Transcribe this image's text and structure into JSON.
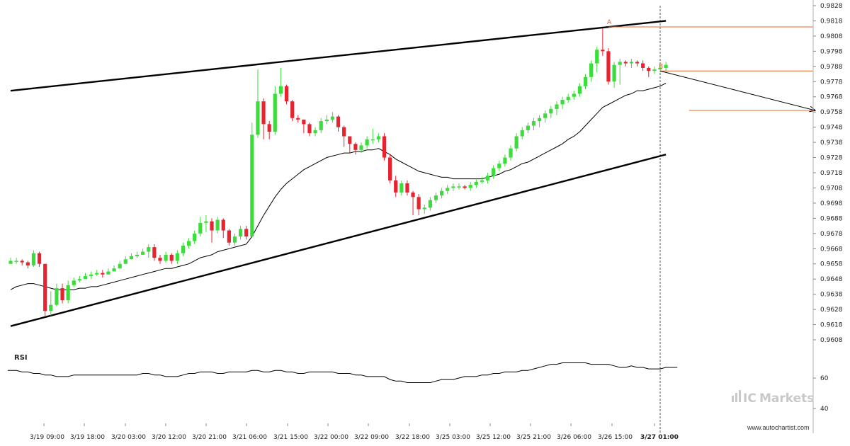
{
  "watermark": "www.autochartist.com",
  "brand": {
    "prefix": "IC",
    "name": "Markets"
  },
  "chart_data": [
    {
      "type": "candlestick",
      "title": "",
      "y_ticks": [
        "0.9828",
        "0.9818",
        "0.9808",
        "0.9798",
        "0.9788",
        "0.9778",
        "0.9768",
        "0.9758",
        "0.9748",
        "0.9738",
        "0.9728",
        "0.9718",
        "0.9708",
        "0.9698",
        "0.9688",
        "0.9678",
        "0.9668",
        "0.9658",
        "0.9648",
        "0.9638",
        "0.9628",
        "0.9618",
        "0.9608"
      ],
      "x_ticks": [
        "3/19 09:00",
        "3/19 18:00",
        "3/20 03:00",
        "3/20 12:00",
        "3/20 21:00",
        "3/21 06:00",
        "3/21 15:00",
        "3/22 00:00",
        "3/22 09:00",
        "3/22 18:00",
        "3/25 03:00",
        "3/25 12:00",
        "3/25 21:00",
        "3/26 06:00",
        "3/26 15:00",
        "3/27 01:00"
      ],
      "ylim": [
        0.9604,
        0.983
      ],
      "colors": {
        "up": "#3ddc3d",
        "down": "#e8232f",
        "trendline": "#000000",
        "level": "#e8672a",
        "ma": "#000000"
      },
      "close": [
        0.966,
        0.966,
        0.9659,
        0.9657,
        0.9665,
        0.9658,
        0.9627,
        0.9631,
        0.9642,
        0.9634,
        0.9644,
        0.9647,
        0.9648,
        0.965,
        0.9651,
        0.9652,
        0.9651,
        0.9653,
        0.9655,
        0.9658,
        0.9661,
        0.9663,
        0.9664,
        0.9666,
        0.9669,
        0.9662,
        0.966,
        0.9664,
        0.966,
        0.9665,
        0.967,
        0.9673,
        0.9678,
        0.9685,
        0.9686,
        0.968,
        0.9687,
        0.968,
        0.9672,
        0.9676,
        0.9681,
        0.9676,
        0.9743,
        0.9765,
        0.975,
        0.9745,
        0.977,
        0.9775,
        0.9765,
        0.9754,
        0.9753,
        0.975,
        0.9744,
        0.9746,
        0.9752,
        0.9753,
        0.9755,
        0.9748,
        0.9742,
        0.9737,
        0.9733,
        0.9736,
        0.974,
        0.974,
        0.9742,
        0.9728,
        0.9713,
        0.9705,
        0.9711,
        0.9705,
        0.9702,
        0.9694,
        0.9695,
        0.97,
        0.9703,
        0.9706,
        0.9708,
        0.9709,
        0.9709,
        0.9708,
        0.971,
        0.9712,
        0.9713,
        0.9716,
        0.9721,
        0.9724,
        0.9728,
        0.9734,
        0.9742,
        0.9746,
        0.9749,
        0.9752,
        0.9754,
        0.9757,
        0.976,
        0.9763,
        0.9766,
        0.9768,
        0.977,
        0.9775,
        0.9781,
        0.979,
        0.9799,
        0.9798,
        0.9778,
        0.9789,
        0.9791,
        0.979,
        0.9791,
        0.979,
        0.9787,
        0.9785,
        0.9786,
        0.9787,
        0.9789
      ],
      "high": [
        0.9662,
        0.9662,
        0.9661,
        0.966,
        0.9667,
        0.9666,
        0.9658,
        0.964,
        0.9645,
        0.9645,
        0.9647,
        0.9649,
        0.965,
        0.9652,
        0.9653,
        0.9654,
        0.9654,
        0.9655,
        0.9657,
        0.966,
        0.9663,
        0.9665,
        0.9666,
        0.9668,
        0.9671,
        0.9671,
        0.9664,
        0.9666,
        0.9665,
        0.9667,
        0.9672,
        0.9675,
        0.968,
        0.9689,
        0.969,
        0.9688,
        0.9689,
        0.9688,
        0.9681,
        0.9678,
        0.9683,
        0.9683,
        0.9751,
        0.9786,
        0.9767,
        0.9752,
        0.9775,
        0.9787,
        0.9776,
        0.9766,
        0.9756,
        0.9753,
        0.9751,
        0.9748,
        0.9754,
        0.9756,
        0.9758,
        0.9756,
        0.9749,
        0.9741,
        0.9738,
        0.9738,
        0.9742,
        0.9747,
        0.9744,
        0.9744,
        0.973,
        0.9716,
        0.9713,
        0.9713,
        0.9706,
        0.9704,
        0.9697,
        0.9702,
        0.9705,
        0.9708,
        0.971,
        0.9711,
        0.9711,
        0.971,
        0.9712,
        0.9714,
        0.9715,
        0.9718,
        0.9723,
        0.9726,
        0.973,
        0.9736,
        0.9744,
        0.9748,
        0.9751,
        0.9754,
        0.9756,
        0.9759,
        0.9762,
        0.9765,
        0.9768,
        0.977,
        0.9772,
        0.9777,
        0.9783,
        0.9792,
        0.9801,
        0.9813,
        0.98,
        0.9791,
        0.9793,
        0.9792,
        0.9793,
        0.9792,
        0.9792,
        0.9788,
        0.9788,
        0.9789,
        0.9791
      ],
      "low": [
        0.9658,
        0.9658,
        0.9657,
        0.9655,
        0.9656,
        0.9656,
        0.9623,
        0.9624,
        0.963,
        0.9632,
        0.9632,
        0.9643,
        0.9646,
        0.9648,
        0.9648,
        0.965,
        0.9649,
        0.9651,
        0.9653,
        0.9655,
        0.9658,
        0.9661,
        0.9662,
        0.9664,
        0.9662,
        0.966,
        0.9658,
        0.9659,
        0.9658,
        0.9658,
        0.9663,
        0.9668,
        0.9671,
        0.9676,
        0.9679,
        0.9672,
        0.9678,
        0.9675,
        0.967,
        0.967,
        0.9674,
        0.9674,
        0.9723,
        0.9741,
        0.974,
        0.974,
        0.9743,
        0.9768,
        0.9763,
        0.9752,
        0.9751,
        0.9744,
        0.9742,
        0.9742,
        0.9744,
        0.975,
        0.9751,
        0.9745,
        0.9735,
        0.9731,
        0.973,
        0.9731,
        0.9734,
        0.9737,
        0.9738,
        0.9726,
        0.9711,
        0.9702,
        0.9703,
        0.9703,
        0.969,
        0.969,
        0.9691,
        0.9693,
        0.9698,
        0.9701,
        0.9704,
        0.9706,
        0.9707,
        0.9707,
        0.9706,
        0.9708,
        0.9711,
        0.9711,
        0.9714,
        0.9719,
        0.9722,
        0.9726,
        0.9732,
        0.974,
        0.9744,
        0.9746,
        0.9748,
        0.9751,
        0.9754,
        0.9756,
        0.976,
        0.9764,
        0.9766,
        0.9768,
        0.9773,
        0.9778,
        0.9784,
        0.9795,
        0.9776,
        0.9774,
        0.9776,
        0.9788,
        0.9787,
        0.9788,
        0.9785,
        0.9781,
        0.9783,
        0.9784,
        0.9785
      ],
      "ma": [
        0.9641,
        0.9643,
        0.9644,
        0.9645,
        0.9645,
        0.9644,
        0.9643,
        0.9642,
        0.9641,
        0.9641,
        0.9641,
        0.9641,
        0.9642,
        0.9642,
        0.9643,
        0.9643,
        0.9644,
        0.9645,
        0.9646,
        0.9647,
        0.9648,
        0.9649,
        0.965,
        0.9651,
        0.9652,
        0.9653,
        0.9654,
        0.9655,
        0.9655,
        0.9656,
        0.9657,
        0.9658,
        0.966,
        0.9662,
        0.9663,
        0.9664,
        0.9666,
        0.9667,
        0.9668,
        0.9669,
        0.967,
        0.9671,
        0.9676,
        0.9683,
        0.969,
        0.9696,
        0.9702,
        0.9707,
        0.9711,
        0.9714,
        0.9717,
        0.972,
        0.9722,
        0.9724,
        0.9726,
        0.9728,
        0.9729,
        0.973,
        0.9731,
        0.9731,
        0.9732,
        0.9732,
        0.9733,
        0.9733,
        0.9734,
        0.9732,
        0.973,
        0.9727,
        0.9725,
        0.9723,
        0.9721,
        0.9719,
        0.9718,
        0.9717,
        0.9716,
        0.9715,
        0.9715,
        0.9714,
        0.9714,
        0.9714,
        0.9714,
        0.9714,
        0.9714,
        0.9715,
        0.9716,
        0.9717,
        0.9719,
        0.972,
        0.9722,
        0.9724,
        0.9725,
        0.9727,
        0.9729,
        0.9731,
        0.9733,
        0.9735,
        0.9737,
        0.974,
        0.9742,
        0.9745,
        0.9749,
        0.9753,
        0.9757,
        0.9761,
        0.9763,
        0.9765,
        0.9767,
        0.9769,
        0.977,
        0.9772,
        0.9772,
        0.9773,
        0.9774,
        0.9775,
        0.9777
      ],
      "trendline_upper": [
        [
          0,
          0.9772
        ],
        [
          114,
          0.9818
        ]
      ],
      "trendline_lower": [
        [
          0,
          0.9617
        ],
        [
          114,
          0.973
        ]
      ],
      "projection_arrow": [
        [
          113,
          0.9785
        ],
        [
          140,
          0.9759
        ]
      ],
      "levels": [
        {
          "label": "A",
          "value": 0.9814,
          "from_index": 104
        },
        {
          "label": "B",
          "value": 0.9785,
          "from_index": 113
        },
        {
          "label": "",
          "value": 0.9759,
          "from_index": 118
        }
      ],
      "vertical_marker_index": 113
    },
    {
      "type": "line",
      "title": "RSI",
      "y_ticks": [
        "60",
        "40"
      ],
      "ylim": [
        35,
        75
      ],
      "values": [
        65,
        65,
        64,
        64,
        63,
        63,
        62,
        62,
        61,
        61,
        61,
        62,
        62,
        62,
        62,
        62,
        62,
        62,
        62,
        62,
        62,
        62,
        62,
        63,
        63,
        62,
        62,
        61,
        61,
        61,
        62,
        63,
        63,
        64,
        64,
        64,
        63,
        63,
        64,
        64,
        64,
        64,
        65,
        65,
        64,
        64,
        65,
        65,
        64,
        64,
        63,
        63,
        64,
        64,
        64,
        64,
        64,
        63,
        63,
        63,
        62,
        62,
        61,
        61,
        61,
        61,
        59,
        58,
        58,
        57,
        57,
        57,
        57,
        57,
        58,
        59,
        59,
        59,
        60,
        61,
        61,
        61,
        62,
        62,
        63,
        63,
        64,
        64,
        64,
        65,
        65,
        66,
        67,
        68,
        69,
        69,
        70,
        70,
        70,
        70,
        70,
        69,
        69,
        69,
        69,
        68,
        67,
        67,
        68,
        67,
        67,
        66,
        66,
        66,
        67,
        67
      ]
    }
  ]
}
